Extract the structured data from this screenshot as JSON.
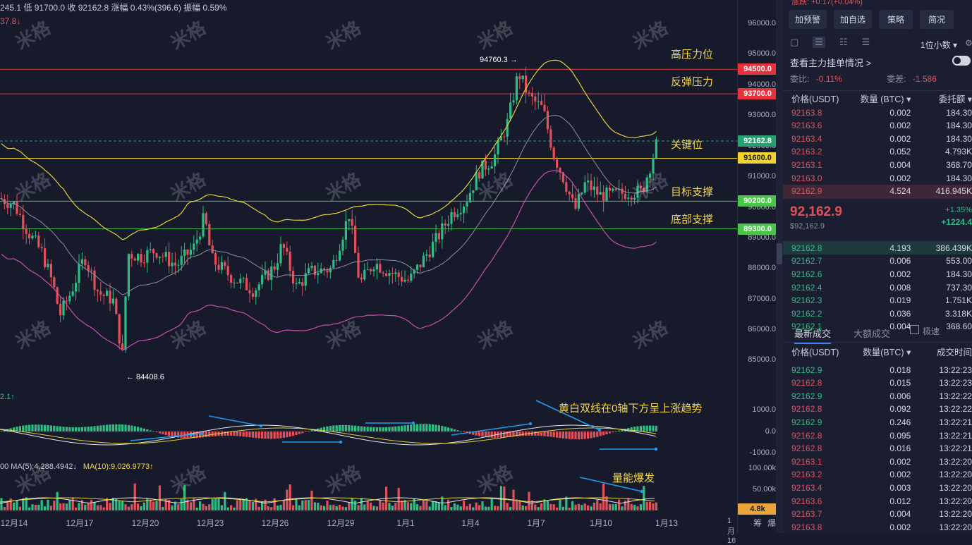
{
  "top_info": {
    "line1": "245.1  低 91700.0  收 92162.8  涨幅 0.43%(396.6)  振幅 0.59%",
    "line2": "37.8↓"
  },
  "price_axis": {
    "ticks": [
      "96000.0",
      "95000.0",
      "94000.0",
      "93000.0",
      "92000.0",
      "91000.0",
      "90000.0",
      "89000.0",
      "88000.0",
      "87000.0",
      "86000.0",
      "85000.0"
    ],
    "macd_ticks": [
      "1000.0",
      "0.0",
      "-1000.0"
    ],
    "vol_ticks": [
      "100.00k",
      "50.00k"
    ]
  },
  "price_tags": [
    {
      "label": "94500.0",
      "color": "#e8333d",
      "text_color": "#ffffff"
    },
    {
      "label": "93700.0",
      "color": "#e8333d",
      "text_color": "#ffffff"
    },
    {
      "label": "92162.8",
      "color": "#27a171",
      "text_color": "#ffffff"
    },
    {
      "label": "91600.0",
      "color": "#f3d42e",
      "text_color": "#1a1a1a"
    },
    {
      "label": "90200.0",
      "color": "#49c54a",
      "text_color": "#ffffff"
    },
    {
      "label": "89300.0",
      "color": "#49c54a",
      "text_color": "#ffffff"
    },
    {
      "label": "4.8k",
      "color": "#e9a43a",
      "text_color": "#1a1a1a"
    }
  ],
  "annotations": {
    "high_pressure": "高压力位",
    "rebound_pressure": "反弹压力",
    "key_level": "关键位",
    "target_support": "目标支撑",
    "bottom_support": "底部支撑",
    "macd_note": "黄白双线在0轴下方呈上涨趋势",
    "volume_note": "量能爆发",
    "high_mark": "94760.3 →",
    "low_mark": "← 84408.6"
  },
  "indicator_labels": {
    "macd_value": "2.1↑",
    "vol_ma": "00  MA(5):4,288.4942↓",
    "vol_ma10": "MA(10):9,026.9773↑"
  },
  "watermark": "米格",
  "x_axis": [
    "12月14",
    "12月17",
    "12月20",
    "12月23",
    "12月26",
    "12月29",
    "1月1",
    "1月4",
    "1月7",
    "1月10",
    "1月13",
    "1月16",
    "筹",
    "爆"
  ],
  "panel": {
    "top_cut": "涨跌: +0.17(+0.04%)",
    "buttons": [
      "加预警",
      "加自选",
      "策略",
      "简况"
    ],
    "decimal": "1位小数",
    "main_orders_title": "查看主力挂单情况 >",
    "weibi_label": "委比:",
    "weibi_value": "-0.11%",
    "weicha_label": "委差:",
    "weicha_value": "-1.586",
    "book_headers": [
      "价格(USDT)",
      "数量 (BTC) ▾",
      "委托额 ▾"
    ],
    "asks": [
      [
        "92163.8",
        "0.002",
        "184.30"
      ],
      [
        "92163.6",
        "0.002",
        "184.30"
      ],
      [
        "92163.4",
        "0.002",
        "184.30"
      ],
      [
        "92163.2",
        "0.052",
        "4.793K"
      ],
      [
        "92163.1",
        "0.004",
        "368.70"
      ],
      [
        "92163.0",
        "0.002",
        "184.30"
      ],
      [
        "92162.9",
        "4.524",
        "416.945K"
      ]
    ],
    "last_price": "92,162.9",
    "last_price_sub": "$92,162.9",
    "change_pct": "+1.35%",
    "change_abs": "+1224.4",
    "bids": [
      [
        "92162.8",
        "4.193",
        "386.439K"
      ],
      [
        "92162.7",
        "0.006",
        "553.00"
      ],
      [
        "92162.6",
        "0.002",
        "184.30"
      ],
      [
        "92162.4",
        "0.008",
        "737.30"
      ],
      [
        "92162.3",
        "0.019",
        "1.751K"
      ],
      [
        "92162.2",
        "0.036",
        "3.318K"
      ],
      [
        "92162.1",
        "0.004",
        "368.60"
      ]
    ],
    "trade_tabs": [
      "最新成交",
      "大额成交"
    ],
    "fast_label": "极速",
    "trade_headers": [
      "价格(USDT)",
      "数量(BTC) ▾",
      "成交时间"
    ],
    "trades": [
      [
        "92162.9",
        "0.018",
        "13:22:23",
        "green"
      ],
      [
        "92162.8",
        "0.015",
        "13:22:23",
        "red"
      ],
      [
        "92162.9",
        "0.006",
        "13:22:22",
        "green"
      ],
      [
        "92162.8",
        "0.092",
        "13:22:22",
        "red"
      ],
      [
        "92162.9",
        "0.246",
        "13:22:21",
        "green"
      ],
      [
        "92162.8",
        "0.095",
        "13:22:21",
        "red"
      ],
      [
        "92162.8",
        "0.016",
        "13:22:21",
        "red"
      ],
      [
        "92163.1",
        "0.002",
        "13:22:20",
        "red"
      ],
      [
        "92163.2",
        "0.002",
        "13:22:20",
        "red"
      ],
      [
        "92163.4",
        "0.003",
        "13:22:20",
        "red"
      ],
      [
        "92163.6",
        "0.012",
        "13:22:20",
        "red"
      ],
      [
        "92163.7",
        "0.004",
        "13:22:20",
        "red"
      ],
      [
        "92163.8",
        "0.002",
        "13:22:20",
        "red"
      ]
    ]
  }
}
